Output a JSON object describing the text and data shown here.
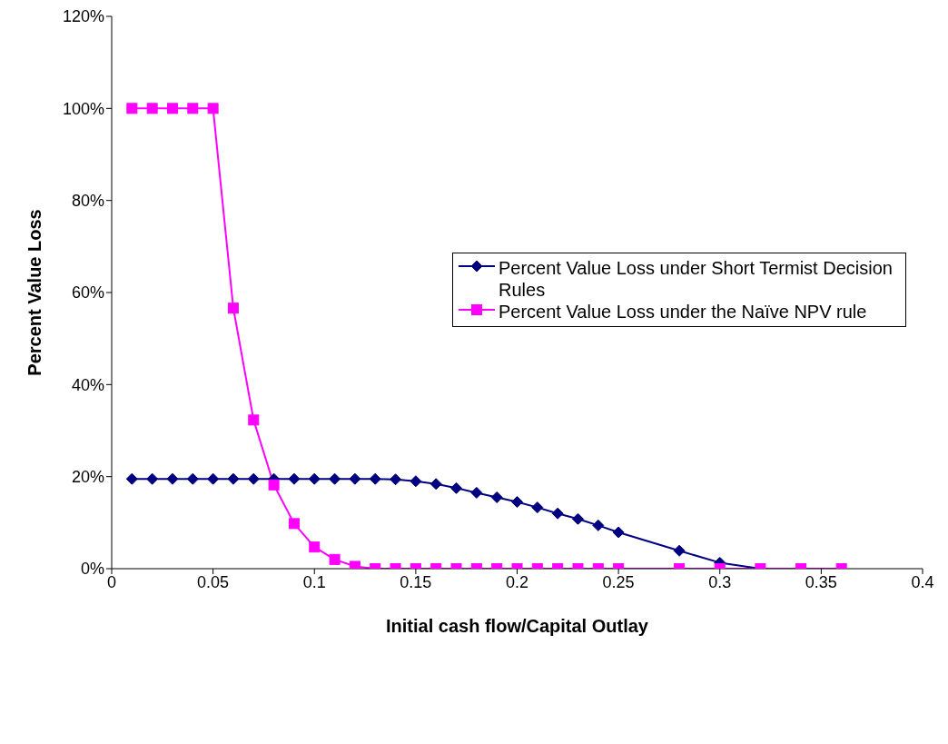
{
  "chart_data": {
    "type": "line",
    "xlabel": "Initial cash flow/Capital Outlay",
    "ylabel": "Percent Value Loss",
    "xlim": [
      0,
      0.4
    ],
    "xticks": [
      0,
      0.05,
      0.1,
      0.15,
      0.2,
      0.25,
      0.3,
      0.35,
      0.4
    ],
    "ylim": [
      0,
      120
    ],
    "yticks": [
      {
        "value": 0,
        "label": "0%"
      },
      {
        "value": 20,
        "label": "20%"
      },
      {
        "value": 40,
        "label": "40%"
      },
      {
        "value": 60,
        "label": "60%"
      },
      {
        "value": 80,
        "label": "80%"
      },
      {
        "value": 100,
        "label": "100%"
      },
      {
        "value": 120,
        "label": "120%"
      }
    ],
    "grid": false,
    "legend": "right",
    "series": [
      {
        "name": "Percent Value Loss under Short Termist Decision Rules",
        "color": "#000080",
        "marker": "diamond",
        "x": [
          0.01,
          0.02,
          0.03,
          0.04,
          0.05,
          0.06,
          0.07,
          0.08,
          0.09,
          0.1,
          0.11,
          0.12,
          0.13,
          0.14,
          0.15,
          0.16,
          0.17,
          0.18,
          0.19,
          0.2,
          0.21,
          0.22,
          0.23,
          0.24,
          0.25,
          0.28,
          0.3,
          0.32
        ],
        "values": [
          19.5,
          19.5,
          19.5,
          19.5,
          19.5,
          19.5,
          19.5,
          19.5,
          19.5,
          19.5,
          19.5,
          19.5,
          19.5,
          19.4,
          19.0,
          18.4,
          17.5,
          16.5,
          15.5,
          14.5,
          13.3,
          12.0,
          10.8,
          9.4,
          7.9,
          3.9,
          1.3,
          0
        ]
      },
      {
        "name": "Percent Value Loss under the Naïve NPV rule",
        "color": "#ff00ff",
        "marker": "square",
        "x": [
          0.01,
          0.02,
          0.03,
          0.04,
          0.05,
          0.06,
          0.07,
          0.08,
          0.09,
          0.1,
          0.11,
          0.12,
          0.13,
          0.14,
          0.15,
          0.16,
          0.17,
          0.18,
          0.19,
          0.2,
          0.21,
          0.22,
          0.23,
          0.24,
          0.25,
          0.28,
          0.3,
          0.32,
          0.34,
          0.36
        ],
        "values": [
          100,
          100,
          100,
          100,
          100,
          56.6,
          32.3,
          18.2,
          9.8,
          4.7,
          2.0,
          0.5,
          0,
          0,
          0,
          0,
          0,
          0,
          0,
          0,
          0,
          0,
          0,
          0,
          0,
          0,
          0,
          0,
          0,
          0
        ]
      }
    ]
  }
}
